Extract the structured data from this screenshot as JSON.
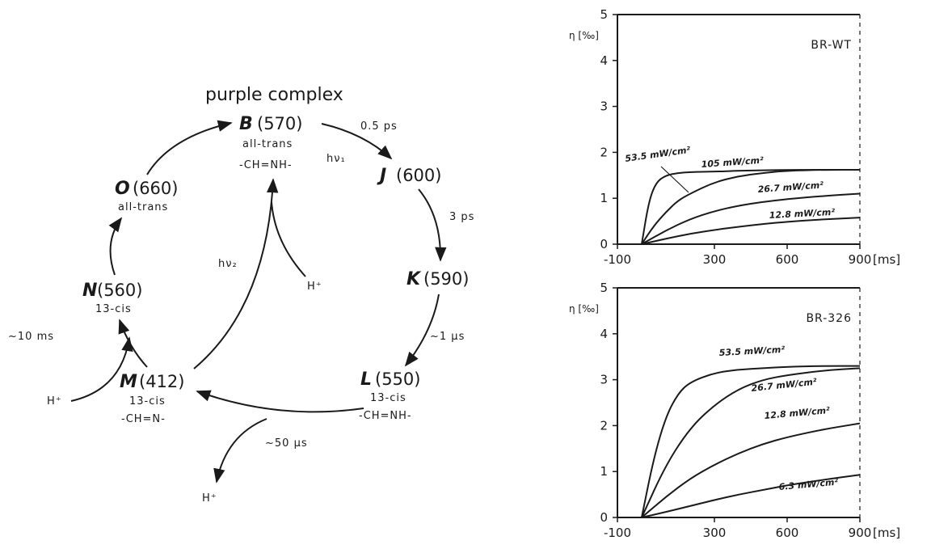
{
  "diagram": {
    "title": "purple complex",
    "states": [
      {
        "id": "B",
        "name": "B",
        "wavelength": "(570)",
        "sub1": "all-trans",
        "sub2": "-CH=NH-"
      },
      {
        "id": "J",
        "name": "J",
        "wavelength": "(600)",
        "sub1": "",
        "sub2": ""
      },
      {
        "id": "K",
        "name": "K",
        "wavelength": "(590)",
        "sub1": "",
        "sub2": ""
      },
      {
        "id": "L",
        "name": "L",
        "wavelength": "(550)",
        "sub1": "13-cis",
        "sub2": "-CH=NH-"
      },
      {
        "id": "M",
        "name": "M",
        "wavelength": "(412)",
        "sub1": "13-cis",
        "sub2": "-CH=N-"
      },
      {
        "id": "N",
        "name": "N",
        "wavelength": "(560)",
        "sub1": "13-cis",
        "sub2": ""
      },
      {
        "id": "O",
        "name": "O",
        "wavelength": "(660)",
        "sub1": "all-trans",
        "sub2": ""
      }
    ],
    "transitions": {
      "B_J": "0.5 ps",
      "B_J_light": "hν₁",
      "J_K": "3 ps",
      "K_L": "~1 µs",
      "L_M": "~50 µs",
      "M_N": "~10 ms",
      "M_B_light": "hν₂",
      "proton": "H⁺"
    }
  },
  "chart_data": [
    {
      "type": "line",
      "title": "BR-WT",
      "ylabel": "η [‰]",
      "xlabel": "[ms]",
      "xlim": [
        -100,
        900
      ],
      "ylim": [
        0,
        5
      ],
      "x_ticks": [
        "-100",
        "300",
        "600",
        "900"
      ],
      "y_ticks": [
        "0",
        "1",
        "2",
        "3",
        "4",
        "5"
      ],
      "series": [
        {
          "name": "53.5 mW/cm²",
          "x": [
            0,
            30,
            60,
            100,
            150,
            200,
            300,
            400,
            600,
            900
          ],
          "y": [
            0,
            0.95,
            1.35,
            1.5,
            1.55,
            1.57,
            1.58,
            1.6,
            1.62,
            1.62
          ]
        },
        {
          "name": "105 mW/cm²",
          "x": [
            0,
            50,
            100,
            150,
            200,
            300,
            400,
            500,
            600,
            750,
            900
          ],
          "y": [
            0,
            0.4,
            0.7,
            0.95,
            1.1,
            1.35,
            1.48,
            1.55,
            1.6,
            1.62,
            1.62
          ]
        },
        {
          "name": "26.7 mW/cm²",
          "x": [
            0,
            100,
            200,
            300,
            400,
            500,
            600,
            750,
            900
          ],
          "y": [
            0,
            0.3,
            0.55,
            0.72,
            0.84,
            0.92,
            0.98,
            1.05,
            1.1
          ]
        },
        {
          "name": "12.8 mW/cm²",
          "x": [
            0,
            100,
            200,
            300,
            400,
            500,
            600,
            750,
            900
          ],
          "y": [
            0,
            0.12,
            0.23,
            0.31,
            0.38,
            0.44,
            0.49,
            0.54,
            0.58
          ]
        }
      ]
    },
    {
      "type": "line",
      "title": "BR-326",
      "ylabel": "η [‰]",
      "xlabel": "[ms]",
      "xlim": [
        -100,
        900
      ],
      "ylim": [
        0,
        5
      ],
      "x_ticks": [
        "-100",
        "300",
        "600",
        "900"
      ],
      "y_ticks": [
        "0",
        "1",
        "2",
        "3",
        "4",
        "5"
      ],
      "series": [
        {
          "name": "53.5 mW/cm²",
          "x": [
            0,
            50,
            100,
            150,
            200,
            300,
            400,
            500,
            600,
            750,
            900
          ],
          "y": [
            0,
            1.3,
            2.2,
            2.7,
            2.95,
            3.15,
            3.22,
            3.25,
            3.28,
            3.3,
            3.3
          ]
        },
        {
          "name": "26.7 mW/cm²",
          "x": [
            0,
            100,
            200,
            300,
            400,
            500,
            600,
            750,
            900
          ],
          "y": [
            0,
            1.15,
            1.95,
            2.45,
            2.8,
            3.0,
            3.1,
            3.2,
            3.25
          ]
        },
        {
          "name": "12.8 mW/cm²",
          "x": [
            0,
            100,
            200,
            300,
            400,
            500,
            600,
            750,
            900
          ],
          "y": [
            0,
            0.45,
            0.85,
            1.15,
            1.4,
            1.6,
            1.75,
            1.92,
            2.05
          ]
        },
        {
          "name": "6.3 mW/cm²",
          "x": [
            0,
            100,
            200,
            300,
            400,
            500,
            600,
            750,
            900
          ],
          "y": [
            0,
            0.12,
            0.25,
            0.38,
            0.5,
            0.6,
            0.7,
            0.82,
            0.93
          ]
        }
      ]
    }
  ]
}
